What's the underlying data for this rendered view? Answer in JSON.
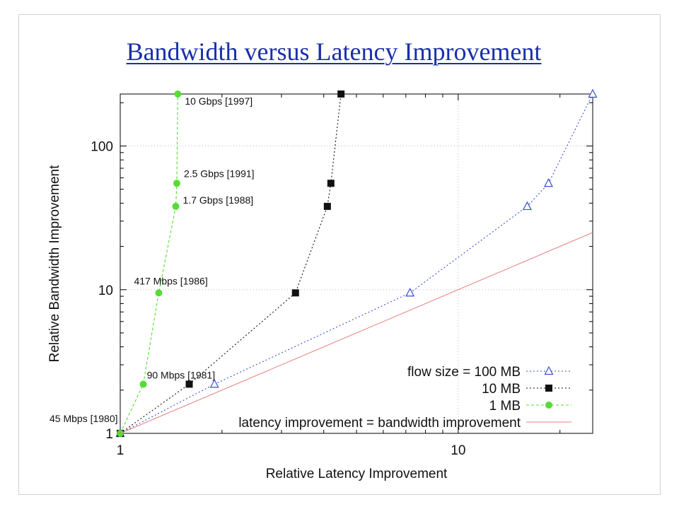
{
  "page": {
    "title": "Bandwidth versus Latency Improvement"
  },
  "chart_data": {
    "type": "line",
    "xlabel": "Relative Latency Improvement",
    "ylabel": "Relative Bandwidth Improvement",
    "x_scale": "log",
    "y_scale": "log",
    "xlim": [
      1,
      25
    ],
    "ylim": [
      1,
      230
    ],
    "x_ticks": [
      1,
      10
    ],
    "y_ticks": [
      1,
      10,
      100
    ],
    "grid": true,
    "legend_position": "bottom-right",
    "series": [
      {
        "name": "flow size = 100 MB",
        "color": "#3a4fd4",
        "marker": "triangle-open",
        "line": "dotted",
        "x": [
          1,
          1.9,
          7.2,
          16,
          18.5,
          25
        ],
        "y": [
          1,
          2.2,
          9.5,
          38,
          55,
          230
        ]
      },
      {
        "name": "10 MB",
        "color": "#111111",
        "marker": "square-filled",
        "line": "dotted",
        "x": [
          1,
          1.6,
          3.3,
          4.1,
          4.2,
          4.5
        ],
        "y": [
          1,
          2.2,
          9.5,
          38,
          55,
          230
        ]
      },
      {
        "name": "1 MB",
        "color": "#55dd33",
        "marker": "circle-filled",
        "line": "dashed",
        "x": [
          1,
          1.17,
          1.3,
          1.46,
          1.47,
          1.48
        ],
        "y": [
          1,
          2.2,
          9.5,
          38,
          55,
          230
        ]
      },
      {
        "name": "latency improvement =  bandwidth improvement",
        "color": "#e88080",
        "marker": "none",
        "line": "solid",
        "x": [
          1,
          25
        ],
        "y": [
          1,
          25
        ]
      }
    ],
    "annotations": [
      {
        "text": "45 Mbps [1980]",
        "x": 1,
        "y": 1
      },
      {
        "text": "90 Mbps [1981]",
        "x": 1.17,
        "y": 2.2
      },
      {
        "text": "417 Mbps [1986]",
        "x": 1.3,
        "y": 9.5
      },
      {
        "text": "1.7 Gbps [1988]",
        "x": 1.46,
        "y": 38
      },
      {
        "text": "2.5 Gbps [1991]",
        "x": 1.47,
        "y": 55
      },
      {
        "text": "10 Gbps [1997]",
        "x": 1.48,
        "y": 230
      }
    ]
  }
}
